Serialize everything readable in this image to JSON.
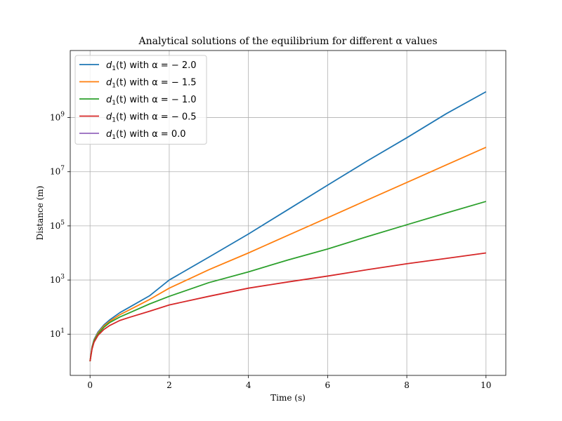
{
  "chart_data": {
    "type": "line",
    "title": "Analytical solutions of the equilibrium for different α values",
    "xlabel": "Time (s)",
    "ylabel": "Distance (m)",
    "xlim": [
      -0.5,
      10.5
    ],
    "ylim": [
      0.3,
      300000000000
    ],
    "yscale": "log",
    "grid": true,
    "legend_position": "upper-left",
    "x_ticks": [
      0,
      2,
      4,
      6,
      8,
      10
    ],
    "x_tick_labels": [
      "0",
      "2",
      "4",
      "6",
      "8",
      "10"
    ],
    "y_ticks": [
      10,
      1000,
      100000,
      10000000,
      1000000000
    ],
    "y_tick_labels": [
      {
        "base": "10",
        "exp": "1"
      },
      {
        "base": "10",
        "exp": "3"
      },
      {
        "base": "10",
        "exp": "5"
      },
      {
        "base": "10",
        "exp": "7"
      },
      {
        "base": "10",
        "exp": "9"
      }
    ],
    "series": [
      {
        "name": "d1(t) with α = − 2.0",
        "legend": {
          "pre": "d",
          "sub": "1",
          "post": "(t) with α = − 2.0"
        },
        "color": "#1f77b4",
        "alpha": -2.0,
        "visible": true,
        "x": [
          0,
          0.05,
          0.1,
          0.2,
          0.35,
          0.5,
          0.75,
          1,
          1.5,
          2,
          3,
          4,
          5,
          6,
          7,
          8,
          9,
          10
        ],
        "y": [
          1,
          3.4,
          6.3,
          12,
          22,
          34,
          62,
          100,
          260,
          1000,
          7000,
          50000,
          400000,
          3200000,
          25000000,
          180000000,
          1400000000,
          9000000000
        ]
      },
      {
        "name": "d1(t) with α = − 1.5",
        "legend": {
          "pre": "d",
          "sub": "1",
          "post": "(t) with α = − 1.5"
        },
        "color": "#ff7f0e",
        "alpha": -1.5,
        "visible": true,
        "x": [
          0,
          0.05,
          0.1,
          0.2,
          0.35,
          0.5,
          0.75,
          1,
          1.5,
          2,
          3,
          4,
          5,
          6,
          7,
          8,
          9,
          10
        ],
        "y": [
          1,
          3.2,
          5.9,
          11,
          20,
          30,
          52,
          80,
          190,
          500,
          2400,
          10000,
          45000,
          200000,
          900000,
          4000000,
          18000000,
          80000000
        ]
      },
      {
        "name": "d1(t) with α = − 1.0",
        "legend": {
          "pre": "d",
          "sub": "1",
          "post": "(t) with α = − 1.0"
        },
        "color": "#2ca02c",
        "alpha": -1.0,
        "visible": true,
        "x": [
          0,
          0.05,
          0.1,
          0.2,
          0.35,
          0.5,
          0.75,
          1,
          1.5,
          2,
          3,
          4,
          5,
          6,
          7,
          8,
          9,
          10
        ],
        "y": [
          1,
          3.0,
          5.6,
          10,
          18,
          27,
          43,
          62,
          130,
          250,
          800,
          2000,
          5500,
          14000,
          40000,
          110000,
          300000,
          800000
        ]
      },
      {
        "name": "d1(t) with α = − 0.5",
        "legend": {
          "pre": "d",
          "sub": "1",
          "post": "(t) with α = − 0.5"
        },
        "color": "#d62728",
        "alpha": -0.5,
        "visible": true,
        "x": [
          0,
          0.05,
          0.1,
          0.2,
          0.35,
          0.5,
          0.75,
          1,
          1.5,
          2,
          3,
          4,
          5,
          6,
          7,
          8,
          9,
          10
        ],
        "y": [
          1,
          2.8,
          5.0,
          9,
          15,
          21,
          32,
          42,
          70,
          120,
          250,
          500,
          850,
          1400,
          2400,
          4000,
          6300,
          10000
        ]
      },
      {
        "name": "d1(t) with α = 0.0",
        "legend": {
          "pre": "d",
          "sub": "1",
          "post": "(t) with α = 0.0"
        },
        "color": "#9467bd",
        "alpha": 0.0,
        "visible": false,
        "x": [],
        "y": []
      }
    ]
  }
}
